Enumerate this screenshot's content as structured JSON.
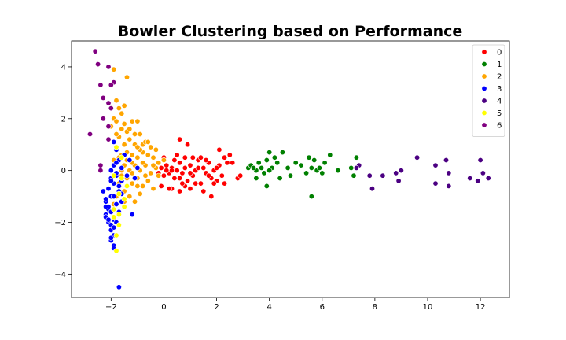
{
  "chart_data": {
    "type": "scatter",
    "title": "Bowler Clustering based on Performance",
    "xlabel": "",
    "ylabel": "",
    "xlim": [
      -3.5,
      13.1
    ],
    "ylim": [
      -4.9,
      5.0
    ],
    "xticks": [
      -2,
      0,
      2,
      4,
      6,
      8,
      10,
      12
    ],
    "yticks": [
      -4,
      -2,
      0,
      2,
      4
    ],
    "grid": false,
    "legend_position": "top-right",
    "series": [
      {
        "name": "0",
        "color": "#ff0000",
        "points": [
          [
            -0.2,
            -0.1
          ],
          [
            -0.1,
            0.1
          ],
          [
            0.0,
            -0.2
          ],
          [
            0.1,
            0.2
          ],
          [
            0.2,
            -0.1
          ],
          [
            0.3,
            0.1
          ],
          [
            0.4,
            -0.3
          ],
          [
            0.5,
            0.0
          ],
          [
            0.6,
            0.3
          ],
          [
            0.7,
            -0.1
          ],
          [
            0.8,
            0.1
          ],
          [
            0.9,
            -0.4
          ],
          [
            1.0,
            0.2
          ],
          [
            1.1,
            -0.2
          ],
          [
            1.2,
            0.0
          ],
          [
            1.3,
            0.4
          ],
          [
            1.4,
            -0.5
          ],
          [
            1.5,
            0.1
          ],
          [
            1.6,
            -0.1
          ],
          [
            1.7,
            0.3
          ],
          [
            1.8,
            -0.3
          ],
          [
            1.9,
            0.0
          ],
          [
            2.0,
            -0.4
          ],
          [
            2.1,
            0.2
          ],
          [
            2.2,
            -0.2
          ],
          [
            2.3,
            0.5
          ],
          [
            2.4,
            0.3
          ],
          [
            2.5,
            0.6
          ],
          [
            2.6,
            0.3
          ],
          [
            0.6,
            1.2
          ],
          [
            0.9,
            1.0
          ],
          [
            0.8,
            0.5
          ],
          [
            1.1,
            0.5
          ],
          [
            0.3,
            -0.7
          ],
          [
            0.6,
            -0.8
          ],
          [
            1.0,
            -0.7
          ],
          [
            1.5,
            -0.8
          ],
          [
            1.8,
            -1.0
          ],
          [
            0.0,
            0.5
          ],
          [
            -0.1,
            -0.6
          ],
          [
            2.1,
            0.8
          ],
          [
            1.7,
            -0.2
          ],
          [
            0.5,
            0.6
          ],
          [
            1.2,
            -0.5
          ],
          [
            0.8,
            -0.6
          ],
          [
            2.3,
            -0.5
          ],
          [
            2.0,
            0.1
          ],
          [
            0.4,
            0.4
          ],
          [
            0.2,
            -0.7
          ],
          [
            1.4,
            0.5
          ],
          [
            0.6,
            -0.3
          ],
          [
            1.0,
            -0.1
          ],
          [
            0.1,
            0.0
          ],
          [
            1.6,
            0.4
          ],
          [
            0.7,
            -0.5
          ],
          [
            2.8,
            -0.3
          ],
          [
            2.9,
            -0.2
          ],
          [
            0.3,
            0.0
          ],
          [
            1.3,
            0.1
          ],
          [
            1.9,
            -0.5
          ]
        ]
      },
      {
        "name": "1",
        "color": "#008000",
        "points": [
          [
            3.2,
            0.1
          ],
          [
            3.3,
            0.2
          ],
          [
            3.5,
            -0.3
          ],
          [
            3.6,
            0.3
          ],
          [
            3.7,
            0.1
          ],
          [
            3.8,
            -0.1
          ],
          [
            3.9,
            0.4
          ],
          [
            4.0,
            0.7
          ],
          [
            4.1,
            0.1
          ],
          [
            4.2,
            0.5
          ],
          [
            4.4,
            -0.3
          ],
          [
            4.5,
            0.7
          ],
          [
            4.7,
            0.1
          ],
          [
            4.8,
            -0.2
          ],
          [
            5.0,
            0.3
          ],
          [
            5.2,
            0.2
          ],
          [
            5.4,
            -0.1
          ],
          [
            5.5,
            0.5
          ],
          [
            5.6,
            0.1
          ],
          [
            5.7,
            0.4
          ],
          [
            5.8,
            0.0
          ],
          [
            5.9,
            0.1
          ],
          [
            6.1,
            0.3
          ],
          [
            6.3,
            0.6
          ],
          [
            6.6,
            0.0
          ],
          [
            7.1,
            0.1
          ],
          [
            7.2,
            -0.2
          ],
          [
            7.3,
            0.5
          ],
          [
            3.9,
            -0.6
          ],
          [
            5.6,
            -1.0
          ],
          [
            4.0,
            0.0
          ],
          [
            3.5,
            0.0
          ],
          [
            4.3,
            0.3
          ],
          [
            6.0,
            -0.1
          ],
          [
            3.4,
            0.1
          ]
        ]
      },
      {
        "name": "2",
        "color": "#ffa500",
        "points": [
          [
            -1.9,
            3.9
          ],
          [
            -1.4,
            3.6
          ],
          [
            -1.8,
            2.7
          ],
          [
            -1.7,
            2.4
          ],
          [
            -1.5,
            2.5
          ],
          [
            -1.6,
            2.2
          ],
          [
            -1.9,
            2.0
          ],
          [
            -2.0,
            1.7
          ],
          [
            -1.8,
            1.9
          ],
          [
            -1.6,
            1.6
          ],
          [
            -1.4,
            1.5
          ],
          [
            -1.2,
            1.9
          ],
          [
            -1.0,
            1.9
          ],
          [
            -1.3,
            1.2
          ],
          [
            -1.1,
            1.0
          ],
          [
            -0.9,
            1.4
          ],
          [
            -0.8,
            1.0
          ],
          [
            -1.7,
            1.3
          ],
          [
            -1.5,
            1.0
          ],
          [
            -1.8,
            0.8
          ],
          [
            -1.6,
            0.6
          ],
          [
            -1.4,
            0.4
          ],
          [
            -1.2,
            0.6
          ],
          [
            -1.0,
            0.5
          ],
          [
            -0.8,
            0.7
          ],
          [
            -0.6,
            0.6
          ],
          [
            -0.4,
            0.5
          ],
          [
            -0.2,
            0.3
          ],
          [
            0.0,
            0.4
          ],
          [
            -1.5,
            0.2
          ],
          [
            -1.3,
            0.0
          ],
          [
            -1.1,
            0.2
          ],
          [
            -0.9,
            0.0
          ],
          [
            -0.7,
            0.2
          ],
          [
            -0.5,
            -0.1
          ],
          [
            -0.3,
            0.1
          ],
          [
            -1.6,
            -0.2
          ],
          [
            -1.4,
            -0.3
          ],
          [
            -1.2,
            -0.5
          ],
          [
            -1.0,
            -0.3
          ],
          [
            -0.8,
            -0.6
          ],
          [
            -0.6,
            -0.4
          ],
          [
            -0.4,
            -0.7
          ],
          [
            -1.7,
            -0.5
          ],
          [
            -1.5,
            -0.8
          ],
          [
            -1.3,
            -1.0
          ],
          [
            -1.1,
            -1.2
          ],
          [
            -0.9,
            -0.9
          ],
          [
            -1.8,
            -1.0
          ],
          [
            -1.9,
            -1.3
          ],
          [
            -1.5,
            1.8
          ],
          [
            -1.3,
            1.6
          ],
          [
            -1.1,
            1.4
          ],
          [
            -0.9,
            0.8
          ],
          [
            -0.7,
            1.1
          ],
          [
            -0.5,
            0.9
          ],
          [
            -0.3,
            0.8
          ],
          [
            -1.6,
            0.0
          ],
          [
            -1.2,
            -0.1
          ],
          [
            -0.8,
            0.3
          ],
          [
            -1.4,
            0.7
          ],
          [
            -1.0,
            0.9
          ],
          [
            -0.6,
            1.1
          ],
          [
            -1.2,
            0.3
          ],
          [
            -1.7,
            0.5
          ],
          [
            -0.2,
            -0.2
          ],
          [
            -1.9,
            0.4
          ],
          [
            -1.8,
            1.4
          ],
          [
            -0.4,
            0.2
          ],
          [
            -1.0,
            -0.6
          ],
          [
            -0.7,
            -0.2
          ],
          [
            -1.5,
            -1.2
          ]
        ]
      },
      {
        "name": "3",
        "color": "#0000ff",
        "points": [
          [
            -1.9,
            1.1
          ],
          [
            -1.8,
            0.8
          ],
          [
            -1.7,
            0.4
          ],
          [
            -1.9,
            0.2
          ],
          [
            -2.0,
            0.0
          ],
          [
            -1.8,
            -0.2
          ],
          [
            -1.6,
            -0.4
          ],
          [
            -1.9,
            -0.5
          ],
          [
            -2.1,
            -0.7
          ],
          [
            -1.7,
            -0.8
          ],
          [
            -2.0,
            -1.0
          ],
          [
            -2.2,
            -1.2
          ],
          [
            -1.8,
            -1.3
          ],
          [
            -2.1,
            -1.5
          ],
          [
            -2.2,
            -1.7
          ],
          [
            -1.9,
            -1.9
          ],
          [
            -2.1,
            -2.0
          ],
          [
            -2.0,
            -2.3
          ],
          [
            -1.9,
            -2.5
          ],
          [
            -2.0,
            -2.7
          ],
          [
            -1.9,
            -2.9
          ],
          [
            -2.3,
            -0.8
          ],
          [
            -2.2,
            -1.1
          ],
          [
            -2.1,
            -1.4
          ],
          [
            -2.2,
            -1.8
          ],
          [
            -2.0,
            -2.1
          ],
          [
            -1.9,
            -2.2
          ],
          [
            -2.0,
            -2.6
          ],
          [
            -1.9,
            -3.0
          ],
          [
            -1.7,
            -4.5
          ],
          [
            -1.2,
            -1.7
          ],
          [
            -1.5,
            0.6
          ],
          [
            -1.6,
            0.1
          ],
          [
            -1.8,
            0.3
          ],
          [
            -2.0,
            -0.3
          ],
          [
            -1.7,
            -0.6
          ],
          [
            -1.6,
            -1.2
          ],
          [
            -1.4,
            -0.2
          ],
          [
            -1.1,
            -0.3
          ],
          [
            -1.0,
            0.1
          ],
          [
            -1.3,
            0.4
          ],
          [
            -1.8,
            -0.1
          ],
          [
            -2.0,
            -1.6
          ],
          [
            -2.1,
            -1.9
          ],
          [
            -1.8,
            -2.0
          ],
          [
            -1.7,
            -1.6
          ],
          [
            -1.9,
            -1.0
          ],
          [
            -2.2,
            -1.4
          ],
          [
            -2.0,
            -0.4
          ],
          [
            -1.6,
            -0.9
          ]
        ]
      },
      {
        "name": "4",
        "color": "#4b0082",
        "points": [
          [
            7.4,
            0.2
          ],
          [
            7.8,
            -0.2
          ],
          [
            7.9,
            -0.7
          ],
          [
            8.3,
            -0.2
          ],
          [
            8.8,
            -0.1
          ],
          [
            8.9,
            -0.4
          ],
          [
            9.0,
            0.0
          ],
          [
            9.6,
            0.5
          ],
          [
            10.3,
            0.2
          ],
          [
            10.3,
            -0.5
          ],
          [
            10.7,
            0.4
          ],
          [
            10.8,
            -0.1
          ],
          [
            10.8,
            -0.6
          ],
          [
            11.6,
            -0.3
          ],
          [
            11.9,
            -0.4
          ],
          [
            12.0,
            0.4
          ],
          [
            12.1,
            -0.1
          ],
          [
            12.3,
            -0.3
          ],
          [
            7.3,
            0.1
          ]
        ]
      },
      {
        "name": "5",
        "color": "#ffff00",
        "points": [
          [
            -1.8,
            0.9
          ],
          [
            -1.6,
            0.5
          ],
          [
            -1.9,
            -0.2
          ],
          [
            -1.7,
            -0.9
          ],
          [
            -1.9,
            -1.5
          ],
          [
            -1.7,
            -1.7
          ],
          [
            -1.5,
            -1.4
          ],
          [
            -1.5,
            -1.1
          ],
          [
            -1.9,
            -1.8
          ],
          [
            -1.7,
            -2.1
          ],
          [
            -1.8,
            -2.5
          ],
          [
            -1.8,
            -3.1
          ],
          [
            -1.6,
            -0.3
          ],
          [
            -1.4,
            -0.6
          ]
        ]
      },
      {
        "name": "6",
        "color": "#800080",
        "points": [
          [
            -2.6,
            4.6
          ],
          [
            -2.5,
            4.1
          ],
          [
            -2.1,
            4.0
          ],
          [
            -1.9,
            3.4
          ],
          [
            -2.4,
            3.3
          ],
          [
            -2.0,
            3.3
          ],
          [
            -2.3,
            2.8
          ],
          [
            -2.1,
            2.6
          ],
          [
            -2.0,
            2.4
          ],
          [
            -2.3,
            2.0
          ],
          [
            -2.1,
            1.7
          ],
          [
            -2.1,
            1.2
          ],
          [
            -2.8,
            1.4
          ],
          [
            -2.4,
            0.2
          ],
          [
            -2.4,
            0.0
          ]
        ]
      }
    ]
  }
}
